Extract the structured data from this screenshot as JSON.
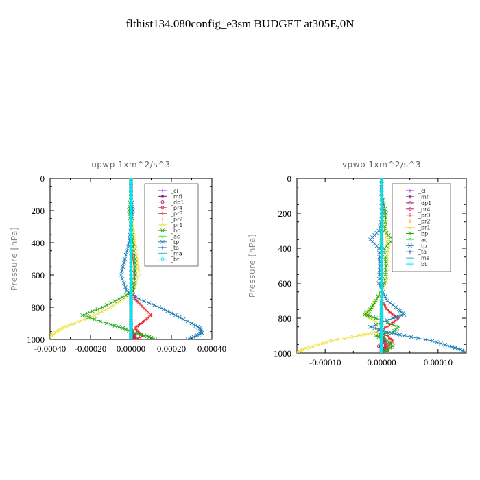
{
  "suptitle": "flthist134.080config_e3sm  BUDGET at305E,0N",
  "chart_data": [
    {
      "type": "line",
      "title": "upwp   1xm^2/s^3",
      "ylabel": "Pressure [hPa]",
      "xlim": [
        -0.0004,
        0.0004
      ],
      "ylim": [
        1000,
        0
      ],
      "y_inverted": true,
      "xticks": [
        "-0.00040",
        "-0.00020",
        "0.00000",
        "0.00020",
        "0.00040"
      ],
      "xtick_values": [
        -0.0004,
        -0.0002,
        0,
        0.0002,
        0.0004
      ],
      "yticks": [
        "0",
        "200",
        "400",
        "600",
        "800",
        "1000"
      ],
      "ytick_values": [
        0,
        200,
        400,
        600,
        800,
        1000
      ],
      "legend_position": "top-right",
      "y": [
        0,
        100,
        200,
        300,
        400,
        500,
        600,
        700,
        750,
        800,
        850,
        900,
        930,
        960,
        980,
        1000
      ],
      "series": [
        {
          "name": "_cl",
          "color": "#9b30d9",
          "marker": "+",
          "values": [
            0,
            0,
            0,
            0,
            0,
            0,
            0,
            0,
            0,
            0,
            0,
            0,
            0,
            0,
            0,
            0
          ]
        },
        {
          "name": "_mfl",
          "color": "#7a1a8c",
          "marker": "*",
          "values": [
            0,
            0,
            0,
            0,
            0,
            0,
            0,
            0,
            0,
            0,
            0,
            0,
            0,
            0,
            0,
            0
          ]
        },
        {
          "name": "_dp1",
          "color": "#a0206e",
          "marker": "o",
          "values": [
            0,
            0,
            0,
            0,
            0,
            0,
            0,
            0,
            0,
            0,
            0,
            0,
            0,
            0,
            1e-05,
            2e-05
          ]
        },
        {
          "name": "_pr4",
          "color": "#d12060",
          "marker": "o",
          "values": [
            0,
            0,
            0,
            0,
            0,
            0,
            0,
            0,
            0,
            0,
            0,
            0,
            0,
            1e-05,
            2e-05,
            1e-05
          ]
        },
        {
          "name": "_pr3",
          "color": "#e8262a",
          "marker": "+",
          "values": [
            0,
            0,
            0,
            0,
            0,
            1e-05,
            2e-05,
            1e-05,
            2e-05,
            6e-05,
            0.0001,
            5e-05,
            2e-05,
            4e-05,
            6e-05,
            2e-05
          ]
        },
        {
          "name": "_pr2",
          "color": "#f4a000",
          "marker": "+",
          "values": [
            0,
            0,
            0,
            0,
            0,
            0,
            0,
            0,
            0,
            0,
            0,
            0,
            0,
            0,
            0,
            0
          ]
        },
        {
          "name": "_pr1",
          "color": "#f0e040",
          "marker": "o",
          "values": [
            0,
            0,
            0,
            1e-05,
            2e-05,
            3e-05,
            4e-05,
            1e-05,
            -4e-05,
            -0.0001,
            -0.00018,
            -0.00028,
            -0.00034,
            -0.00038,
            -0.0004,
            -0.00042
          ]
        },
        {
          "name": "_bp",
          "color": "#22aa22",
          "marker": "x",
          "values": [
            0,
            0,
            -1e-05,
            0,
            1e-05,
            2e-05,
            2e-05,
            1e-05,
            -6e-05,
            -0.00014,
            -0.00024,
            -0.00012,
            -4e-05,
            2e-05,
            8e-05,
            0.00012
          ]
        },
        {
          "name": "_ac",
          "color": "#66ee66",
          "marker": "o",
          "values": [
            0,
            0,
            0,
            0,
            0,
            0,
            0,
            0,
            0,
            0,
            0,
            0,
            0,
            0,
            0,
            0
          ]
        },
        {
          "name": "_tp",
          "color": "#1a7fb8",
          "marker": "x",
          "values": [
            0,
            0,
            1e-05,
            0,
            -1e-05,
            -3e-05,
            -5e-05,
            -2e-05,
            4e-05,
            0.00014,
            0.00022,
            0.0003,
            0.00034,
            0.00035,
            0.00032,
            0.00028
          ]
        },
        {
          "name": "_ta",
          "color": "#1f3aa8",
          "marker": "+",
          "values": [
            0,
            0,
            0,
            0,
            0,
            0,
            0,
            0,
            0,
            0,
            0,
            0,
            0,
            0,
            0,
            0
          ]
        },
        {
          "name": "_ma",
          "color": "#30c8c8",
          "marker": "-",
          "values": [
            0,
            0,
            0,
            0,
            0,
            0,
            0,
            0,
            0,
            0,
            0,
            0,
            0,
            0,
            0,
            0
          ]
        },
        {
          "name": "_bt",
          "color": "#00e5ee",
          "marker": "o",
          "values": [
            0,
            0,
            0,
            0,
            0,
            0,
            0,
            0,
            0,
            0,
            0,
            0,
            0,
            0,
            0,
            0
          ]
        }
      ]
    },
    {
      "type": "line",
      "title": "vpwp   1xm^2/s^3",
      "ylabel": "Pressure [hPa]",
      "xlim": [
        -0.00015,
        0.00015
      ],
      "ylim": [
        1000,
        0
      ],
      "y_inverted": true,
      "xticks": [
        "-0.00010",
        "0.00000",
        "0.00010"
      ],
      "xtick_values": [
        -0.0001,
        0,
        0.0001
      ],
      "yticks": [
        "0",
        "200",
        "400",
        "600",
        "800",
        "1000"
      ],
      "ytick_values": [
        0,
        200,
        400,
        600,
        800,
        1000
      ],
      "legend_position": "top-right",
      "y": [
        0,
        100,
        200,
        300,
        350,
        400,
        500,
        600,
        700,
        750,
        780,
        800,
        850,
        880,
        900,
        930,
        960,
        980,
        1000
      ],
      "series": [
        {
          "name": "_cl",
          "color": "#9b30d9",
          "marker": "+",
          "values": [
            0,
            0,
            0,
            0,
            0,
            0,
            0,
            0,
            0,
            0,
            0,
            0,
            0,
            0,
            0,
            0,
            0,
            0,
            0
          ]
        },
        {
          "name": "_mfl",
          "color": "#7a1a8c",
          "marker": "*",
          "values": [
            0,
            0,
            0,
            0,
            0,
            0,
            0,
            0,
            0,
            0,
            0,
            0,
            0,
            0,
            0,
            0,
            0,
            0,
            0
          ]
        },
        {
          "name": "_dp1",
          "color": "#a0206e",
          "marker": "o",
          "values": [
            0,
            0,
            0,
            0,
            0,
            0,
            0,
            0,
            0,
            0,
            0,
            0,
            0,
            0,
            0,
            5e-06,
            -5e-06,
            5e-06,
            0
          ]
        },
        {
          "name": "_pr4",
          "color": "#d12060",
          "marker": "o",
          "values": [
            0,
            0,
            0,
            0,
            0,
            0,
            0,
            0,
            0,
            0,
            0,
            0,
            0,
            0,
            0,
            5e-06,
            8e-06,
            4e-06,
            0
          ]
        },
        {
          "name": "_pr3",
          "color": "#e8262a",
          "marker": "+",
          "values": [
            0,
            0,
            0,
            0,
            0,
            0,
            0,
            0,
            0,
            1e-05,
            2e-05,
            3e-05,
            1e-05,
            -1e-05,
            1e-05,
            2e-05,
            1e-05,
            1e-05,
            1e-05
          ]
        },
        {
          "name": "_pr2",
          "color": "#f4a000",
          "marker": "+",
          "values": [
            0,
            0,
            0,
            0,
            0,
            0,
            0,
            0,
            0,
            0,
            0,
            0,
            0,
            0,
            0,
            0,
            0,
            0,
            0
          ]
        },
        {
          "name": "_pr1",
          "color": "#f0e040",
          "marker": "o",
          "values": [
            0,
            0,
            5e-06,
            8e-06,
            1e-05,
            1.2e-05,
            1e-05,
            8e-06,
            -1e-05,
            -2e-05,
            -3e-05,
            -2e-05,
            0,
            -1e-05,
            -4e-05,
            -9e-05,
            -0.00012,
            -0.00014,
            -0.00015
          ]
        },
        {
          "name": "_bp",
          "color": "#22aa22",
          "marker": "x",
          "values": [
            0,
            0,
            8e-06,
            5e-06,
            2e-05,
            5e-06,
            8e-06,
            5e-06,
            -1e-05,
            -2e-05,
            -3e-05,
            -1e-05,
            3e-05,
            2e-05,
            -1e-05,
            1e-05,
            2e-05,
            1e-05,
            0
          ]
        },
        {
          "name": "_ac",
          "color": "#66ee66",
          "marker": "o",
          "values": [
            0,
            0,
            0,
            0,
            0,
            0,
            0,
            0,
            0,
            0,
            0,
            0,
            0,
            0,
            0,
            0,
            0,
            0,
            0
          ]
        },
        {
          "name": "_tp",
          "color": "#1a7fb8",
          "marker": "x",
          "values": [
            0,
            0,
            3e-06,
            -5e-06,
            -2e-05,
            -5e-06,
            -3e-06,
            -5e-06,
            1e-05,
            3e-05,
            4e-05,
            2e-05,
            -2e-05,
            1e-05,
            4e-05,
            9e-05,
            0.00012,
            0.00014,
            0.00015
          ]
        },
        {
          "name": "_ta",
          "color": "#1f3aa8",
          "marker": "+",
          "values": [
            0,
            0,
            0,
            0,
            0,
            0,
            0,
            0,
            0,
            0,
            0,
            0,
            0,
            0,
            0,
            0,
            0,
            0,
            0
          ]
        },
        {
          "name": "_ma",
          "color": "#30c8c8",
          "marker": "-",
          "values": [
            0,
            0,
            0,
            0,
            0,
            0,
            0,
            0,
            0,
            0,
            0,
            0,
            0,
            0,
            0,
            0,
            0,
            0,
            0
          ]
        },
        {
          "name": "_bt",
          "color": "#00e5ee",
          "marker": "o",
          "values": [
            0,
            0,
            0,
            0,
            0,
            0,
            0,
            0,
            0,
            0,
            0,
            0,
            0,
            0,
            0,
            0,
            0,
            0,
            0
          ]
        }
      ]
    }
  ]
}
